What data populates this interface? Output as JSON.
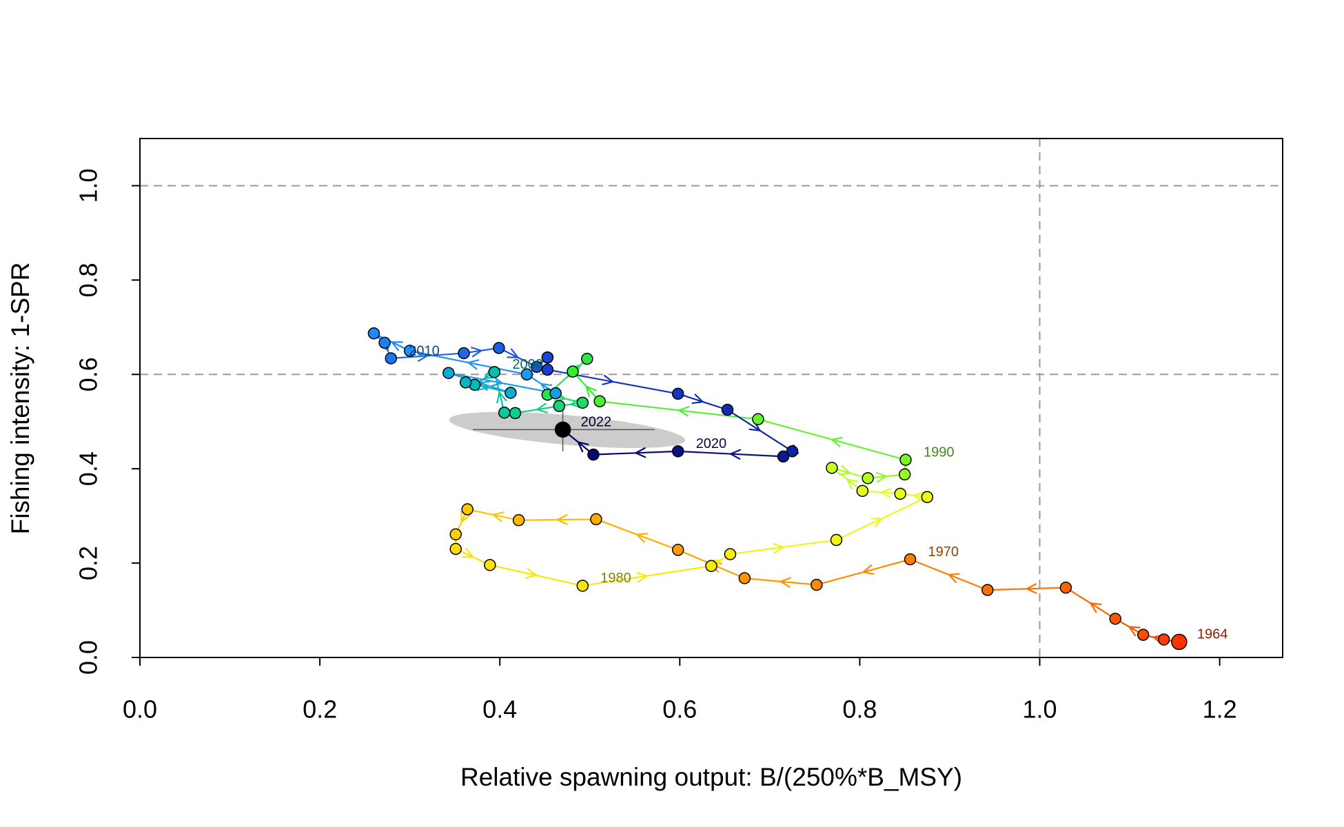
{
  "chart_data": {
    "type": "phase",
    "x_label": "Relative spawning output: B/(250%*B_MSY)",
    "y_label": "Fishing intensity: 1-SPR",
    "xlim": [
      0,
      1.27
    ],
    "ylim": [
      0,
      1.1
    ],
    "xticks": [
      {
        "value": 0,
        "label": "0.0"
      },
      0.2,
      0.4,
      0.6,
      0.8,
      {
        "value": 1,
        "label": "1.0"
      },
      1.2
    ],
    "yticks": [
      {
        "value": 0,
        "label": "0.0"
      },
      0.2,
      0.4,
      0.6,
      0.8,
      {
        "value": 1,
        "label": "1.0"
      }
    ],
    "ref_lines": {
      "h": [
        1.0,
        0.6
      ],
      "v": [
        1.0
      ]
    },
    "ref_line_color": "#999999",
    "color_ramp": [
      "#ff3300",
      "#ff8c00",
      "#ffe000",
      "#e8ff20",
      "#33ee33",
      "#00c0b0",
      "#1e90ff",
      "#1a3fd0",
      "#000060"
    ],
    "x": [
      1.155,
      1.138,
      1.115,
      1.084,
      1.029,
      0.942,
      0.856,
      0.752,
      0.672,
      0.598,
      0.507,
      0.421,
      0.364,
      0.351,
      0.351,
      0.389,
      0.492,
      0.635,
      0.656,
      0.774,
      0.875,
      0.845,
      0.803,
      0.769,
      0.809,
      0.85,
      0.851,
      0.687,
      0.511,
      0.481,
      0.497,
      0.453,
      0.492,
      0.466,
      0.417,
      0.405,
      0.394,
      0.372,
      0.362,
      0.412,
      0.343,
      0.462,
      0.43,
      0.3,
      0.26,
      0.272,
      0.279,
      0.36,
      0.399,
      0.441,
      0.453,
      0.453,
      0.598,
      0.653,
      0.725,
      0.715,
      0.598,
      0.504,
      0.47
    ],
    "y": [
      0.033,
      0.038,
      0.048,
      0.082,
      0.148,
      0.143,
      0.208,
      0.154,
      0.168,
      0.228,
      0.293,
      0.291,
      0.314,
      0.261,
      0.23,
      0.196,
      0.152,
      0.194,
      0.219,
      0.249,
      0.34,
      0.347,
      0.353,
      0.402,
      0.38,
      0.388,
      0.419,
      0.505,
      0.543,
      0.606,
      0.633,
      0.557,
      0.54,
      0.533,
      0.518,
      0.519,
      0.605,
      0.578,
      0.583,
      0.561,
      0.603,
      0.56,
      0.6,
      0.65,
      0.687,
      0.667,
      0.634,
      0.645,
      0.656,
      0.616,
      0.636,
      0.61,
      0.559,
      0.525,
      0.437,
      0.426,
      0.437,
      0.43,
      0.483
    ],
    "point_labels": [
      "1964",
      null,
      null,
      null,
      null,
      null,
      "1970",
      null,
      null,
      null,
      null,
      null,
      null,
      null,
      null,
      null,
      "1980",
      null,
      null,
      null,
      null,
      null,
      null,
      null,
      null,
      null,
      "1990",
      null,
      null,
      null,
      null,
      null,
      null,
      null,
      null,
      null,
      "2000",
      null,
      null,
      null,
      null,
      null,
      null,
      null,
      null,
      null,
      "2010",
      null,
      null,
      null,
      null,
      null,
      null,
      null,
      null,
      null,
      "2020",
      null,
      "2022"
    ],
    "uncertainty": {
      "x_interval": [
        0.37,
        0.572
      ],
      "y_interval": [
        0.437,
        0.527
      ],
      "color": "#cccccc"
    }
  }
}
